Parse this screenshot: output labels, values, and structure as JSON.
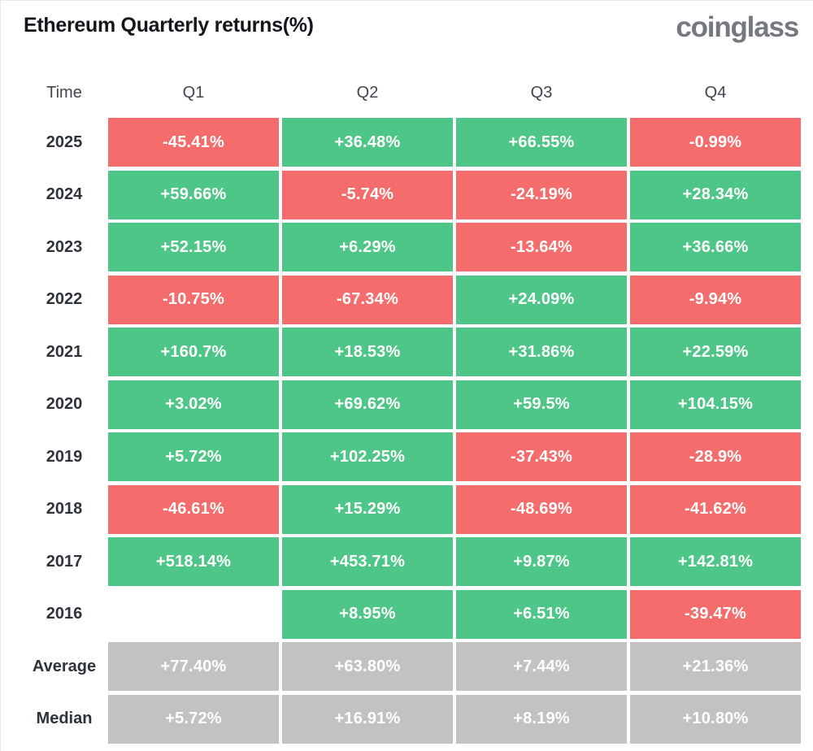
{
  "header": {
    "title": "Ethereum Quarterly returns(%)",
    "logo": "coinglass"
  },
  "colors": {
    "positive": "#4ec687",
    "negative": "#f56c6c",
    "neutral": "#c2c2c2"
  },
  "table": {
    "columns": [
      "Time",
      "Q1",
      "Q2",
      "Q3",
      "Q4"
    ],
    "rows": [
      {
        "label": "2025",
        "cells": [
          {
            "text": "-45.41%",
            "type": "negative"
          },
          {
            "text": "+36.48%",
            "type": "positive"
          },
          {
            "text": "+66.55%",
            "type": "positive"
          },
          {
            "text": "-0.99%",
            "type": "negative"
          }
        ]
      },
      {
        "label": "2024",
        "cells": [
          {
            "text": "+59.66%",
            "type": "positive"
          },
          {
            "text": "-5.74%",
            "type": "negative"
          },
          {
            "text": "-24.19%",
            "type": "negative"
          },
          {
            "text": "+28.34%",
            "type": "positive"
          }
        ]
      },
      {
        "label": "2023",
        "cells": [
          {
            "text": "+52.15%",
            "type": "positive"
          },
          {
            "text": "+6.29%",
            "type": "positive"
          },
          {
            "text": "-13.64%",
            "type": "negative"
          },
          {
            "text": "+36.66%",
            "type": "positive"
          }
        ]
      },
      {
        "label": "2022",
        "cells": [
          {
            "text": "-10.75%",
            "type": "negative"
          },
          {
            "text": "-67.34%",
            "type": "negative"
          },
          {
            "text": "+24.09%",
            "type": "positive"
          },
          {
            "text": "-9.94%",
            "type": "negative"
          }
        ]
      },
      {
        "label": "2021",
        "cells": [
          {
            "text": "+160.7%",
            "type": "positive"
          },
          {
            "text": "+18.53%",
            "type": "positive"
          },
          {
            "text": "+31.86%",
            "type": "positive"
          },
          {
            "text": "+22.59%",
            "type": "positive"
          }
        ]
      },
      {
        "label": "2020",
        "cells": [
          {
            "text": "+3.02%",
            "type": "positive"
          },
          {
            "text": "+69.62%",
            "type": "positive"
          },
          {
            "text": "+59.5%",
            "type": "positive"
          },
          {
            "text": "+104.15%",
            "type": "positive"
          }
        ]
      },
      {
        "label": "2019",
        "cells": [
          {
            "text": "+5.72%",
            "type": "positive"
          },
          {
            "text": "+102.25%",
            "type": "positive"
          },
          {
            "text": "-37.43%",
            "type": "negative"
          },
          {
            "text": "-28.9%",
            "type": "negative"
          }
        ]
      },
      {
        "label": "2018",
        "cells": [
          {
            "text": "-46.61%",
            "type": "negative"
          },
          {
            "text": "+15.29%",
            "type": "positive"
          },
          {
            "text": "-48.69%",
            "type": "negative"
          },
          {
            "text": "-41.62%",
            "type": "negative"
          }
        ]
      },
      {
        "label": "2017",
        "cells": [
          {
            "text": "+518.14%",
            "type": "positive"
          },
          {
            "text": "+453.71%",
            "type": "positive"
          },
          {
            "text": "+9.87%",
            "type": "positive"
          },
          {
            "text": "+142.81%",
            "type": "positive"
          }
        ]
      },
      {
        "label": "2016",
        "cells": [
          {
            "text": "",
            "type": "empty"
          },
          {
            "text": "+8.95%",
            "type": "positive"
          },
          {
            "text": "+6.51%",
            "type": "positive"
          },
          {
            "text": "-39.47%",
            "type": "negative"
          }
        ]
      },
      {
        "label": "Average",
        "cells": [
          {
            "text": "+77.40%",
            "type": "neutral"
          },
          {
            "text": "+63.80%",
            "type": "neutral"
          },
          {
            "text": "+7.44%",
            "type": "neutral"
          },
          {
            "text": "+21.36%",
            "type": "neutral"
          }
        ]
      },
      {
        "label": "Median",
        "cells": [
          {
            "text": "+5.72%",
            "type": "neutral"
          },
          {
            "text": "+16.91%",
            "type": "neutral"
          },
          {
            "text": "+8.19%",
            "type": "neutral"
          },
          {
            "text": "+10.80%",
            "type": "neutral"
          }
        ]
      }
    ]
  },
  "chart_data": {
    "type": "table",
    "title": "Ethereum Quarterly returns(%)",
    "categories": [
      "Q1",
      "Q2",
      "Q3",
      "Q4"
    ],
    "series": [
      {
        "name": "2025",
        "values": [
          -45.41,
          36.48,
          66.55,
          -0.99
        ]
      },
      {
        "name": "2024",
        "values": [
          59.66,
          -5.74,
          -24.19,
          28.34
        ]
      },
      {
        "name": "2023",
        "values": [
          52.15,
          6.29,
          -13.64,
          36.66
        ]
      },
      {
        "name": "2022",
        "values": [
          -10.75,
          -67.34,
          24.09,
          -9.94
        ]
      },
      {
        "name": "2021",
        "values": [
          160.7,
          18.53,
          31.86,
          22.59
        ]
      },
      {
        "name": "2020",
        "values": [
          3.02,
          69.62,
          59.5,
          104.15
        ]
      },
      {
        "name": "2019",
        "values": [
          5.72,
          102.25,
          -37.43,
          -28.9
        ]
      },
      {
        "name": "2018",
        "values": [
          -46.61,
          15.29,
          -48.69,
          -41.62
        ]
      },
      {
        "name": "2017",
        "values": [
          518.14,
          453.71,
          9.87,
          142.81
        ]
      },
      {
        "name": "2016",
        "values": [
          null,
          8.95,
          6.51,
          -39.47
        ]
      },
      {
        "name": "Average",
        "values": [
          77.4,
          63.8,
          7.44,
          21.36
        ]
      },
      {
        "name": "Median",
        "values": [
          5.72,
          16.91,
          8.19,
          10.8
        ]
      }
    ],
    "value_format": "percent",
    "legend": "color-coded: green = positive, red = negative, gray = summary rows"
  }
}
